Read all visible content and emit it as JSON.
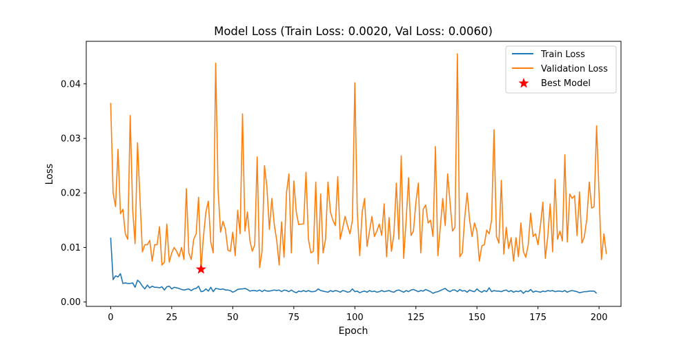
{
  "chart_data": {
    "type": "line",
    "title": "Model Loss (Train Loss: 0.0020, Val Loss: 0.0060)",
    "xlabel": "Epoch",
    "ylabel": "Loss",
    "xlim": [
      -10,
      209
    ],
    "ylim": [
      -0.0008,
      0.0478
    ],
    "x_ticks": [
      0,
      25,
      50,
      75,
      100,
      125,
      150,
      175,
      200
    ],
    "y_ticks": [
      0.0,
      0.01,
      0.02,
      0.03,
      0.04
    ],
    "y_tick_labels": [
      "0.00",
      "0.01",
      "0.02",
      "0.03",
      "0.04"
    ],
    "grid": false,
    "legend_position": "top-right",
    "series": [
      {
        "name": "Train Loss",
        "color": "#1f77b4",
        "x_start": 0,
        "values": [
          0.0118,
          0.0041,
          0.0048,
          0.0046,
          0.0052,
          0.0034,
          0.0035,
          0.0034,
          0.0034,
          0.0035,
          0.0027,
          0.004,
          0.0036,
          0.0029,
          0.0024,
          0.0031,
          0.0026,
          0.0029,
          0.0027,
          0.0027,
          0.0026,
          0.0028,
          0.0022,
          0.0028,
          0.0029,
          0.0024,
          0.0027,
          0.0026,
          0.0025,
          0.0023,
          0.0022,
          0.0023,
          0.0024,
          0.0021,
          0.0024,
          0.0025,
          0.0029,
          0.0019,
          0.002,
          0.0024,
          0.002,
          0.0027,
          0.0019,
          0.0025,
          0.0024,
          0.0023,
          0.0024,
          0.0022,
          0.0022,
          0.0021,
          0.0018,
          0.002,
          0.0023,
          0.0024,
          0.0024,
          0.0025,
          0.0023,
          0.002,
          0.0021,
          0.0021,
          0.002,
          0.0022,
          0.0019,
          0.0022,
          0.002,
          0.002,
          0.0021,
          0.0022,
          0.0021,
          0.0022,
          0.0019,
          0.0022,
          0.0021,
          0.0019,
          0.0022,
          0.0019,
          0.0017,
          0.002,
          0.0019,
          0.0021,
          0.0019,
          0.0021,
          0.0019,
          0.0019,
          0.002,
          0.0024,
          0.0021,
          0.002,
          0.0019,
          0.0018,
          0.0021,
          0.0019,
          0.0021,
          0.002,
          0.0018,
          0.0021,
          0.002,
          0.0018,
          0.0019,
          0.0024,
          0.0019,
          0.002,
          0.0017,
          0.0019,
          0.002,
          0.0018,
          0.0021,
          0.0019,
          0.002,
          0.0018,
          0.0019,
          0.0021,
          0.0019,
          0.002,
          0.0021,
          0.0019,
          0.0018,
          0.0021,
          0.0022,
          0.002,
          0.0018,
          0.0021,
          0.0019,
          0.0022,
          0.0023,
          0.0021,
          0.0019,
          0.0021,
          0.002,
          0.0023,
          0.0021,
          0.0019,
          0.0016,
          0.0018,
          0.0019,
          0.0021,
          0.0023,
          0.0025,
          0.0021,
          0.0019,
          0.0022,
          0.0022,
          0.0019,
          0.0023,
          0.002,
          0.0021,
          0.0018,
          0.0022,
          0.002,
          0.0019,
          0.0024,
          0.002,
          0.0018,
          0.0021,
          0.0019,
          0.0026,
          0.0019,
          0.0021,
          0.002,
          0.002,
          0.0019,
          0.0021,
          0.0022,
          0.0019,
          0.0021,
          0.0018,
          0.002,
          0.0019,
          0.0021,
          0.0016,
          0.002,
          0.0019,
          0.0023,
          0.0018,
          0.002,
          0.0019,
          0.0018,
          0.002,
          0.0019,
          0.0021,
          0.002,
          0.0021,
          0.0019,
          0.002,
          0.002,
          0.0019,
          0.0021,
          0.0018,
          0.002,
          0.0021,
          0.002,
          0.0019,
          0.0017,
          0.0018,
          0.0019,
          0.0019,
          0.002,
          0.002,
          0.002,
          0.0016
        ]
      },
      {
        "name": "Validation Loss",
        "color": "#ff7f0e",
        "x_start": 0,
        "values": [
          0.0365,
          0.02,
          0.0175,
          0.028,
          0.0162,
          0.017,
          0.0125,
          0.0115,
          0.0342,
          0.017,
          0.0107,
          0.0292,
          0.019,
          0.0092,
          0.0105,
          0.0105,
          0.0113,
          0.0075,
          0.0105,
          0.0105,
          0.0138,
          0.0068,
          0.0073,
          0.0143,
          0.0073,
          0.009,
          0.01,
          0.0093,
          0.0083,
          0.01,
          0.0078,
          0.0208,
          0.009,
          0.0078,
          0.0115,
          0.0125,
          0.0192,
          0.006,
          0.012,
          0.0165,
          0.0185,
          0.011,
          0.009,
          0.0438,
          0.0205,
          0.0128,
          0.0148,
          0.0133,
          0.0095,
          0.0093,
          0.0128,
          0.0085,
          0.0168,
          0.0125,
          0.0345,
          0.013,
          0.0165,
          0.0113,
          0.0093,
          0.0105,
          0.0266,
          0.0063,
          0.0093,
          0.025,
          0.021,
          0.0133,
          0.019,
          0.0142,
          0.0113,
          0.0068,
          0.0147,
          0.0082,
          0.02,
          0.0235,
          0.009,
          0.0222,
          0.0165,
          0.0142,
          0.0143,
          0.0143,
          0.0238,
          0.0115,
          0.009,
          0.0093,
          0.022,
          0.007,
          0.0198,
          0.009,
          0.0115,
          0.022,
          0.0165,
          0.015,
          0.014,
          0.023,
          0.0115,
          0.0135,
          0.0157,
          0.014,
          0.0125,
          0.015,
          0.0402,
          0.0165,
          0.0085,
          0.0165,
          0.019,
          0.0102,
          0.013,
          0.0157,
          0.012,
          0.013,
          0.0143,
          0.0122,
          0.018,
          0.0083,
          0.0155,
          0.0093,
          0.0125,
          0.0218,
          0.0115,
          0.0268,
          0.008,
          0.015,
          0.0228,
          0.0122,
          0.013,
          0.0183,
          0.0218,
          0.009,
          0.017,
          0.0178,
          0.0145,
          0.015,
          0.012,
          0.0285,
          0.0085,
          0.0137,
          0.019,
          0.014,
          0.0235,
          0.0182,
          0.013,
          0.0137,
          0.0455,
          0.0083,
          0.009,
          0.0155,
          0.02,
          0.015,
          0.012,
          0.0145,
          0.013,
          0.0075,
          0.0103,
          0.0105,
          0.0132,
          0.0125,
          0.015,
          0.0316,
          0.012,
          0.0108,
          0.0223,
          0.0088,
          0.0137,
          0.0098,
          0.0118,
          0.0075,
          0.0118,
          0.0083,
          0.0145,
          0.0093,
          0.0082,
          0.0105,
          0.0163,
          0.012,
          0.0125,
          0.0105,
          0.014,
          0.0183,
          0.008,
          0.012,
          0.018,
          0.0092,
          0.0225,
          0.0115,
          0.013,
          0.0112,
          0.027,
          0.011,
          0.0198,
          0.019,
          0.0195,
          0.0122,
          0.0202,
          0.0108,
          0.012,
          0.0152,
          0.022,
          0.0172,
          0.0175,
          0.0323,
          0.02,
          0.0078,
          0.0125,
          0.0088
        ]
      }
    ],
    "best_model": {
      "name": "Best Model",
      "x": 37,
      "y": 0.006,
      "color": "#ff0000",
      "marker": "star"
    }
  }
}
